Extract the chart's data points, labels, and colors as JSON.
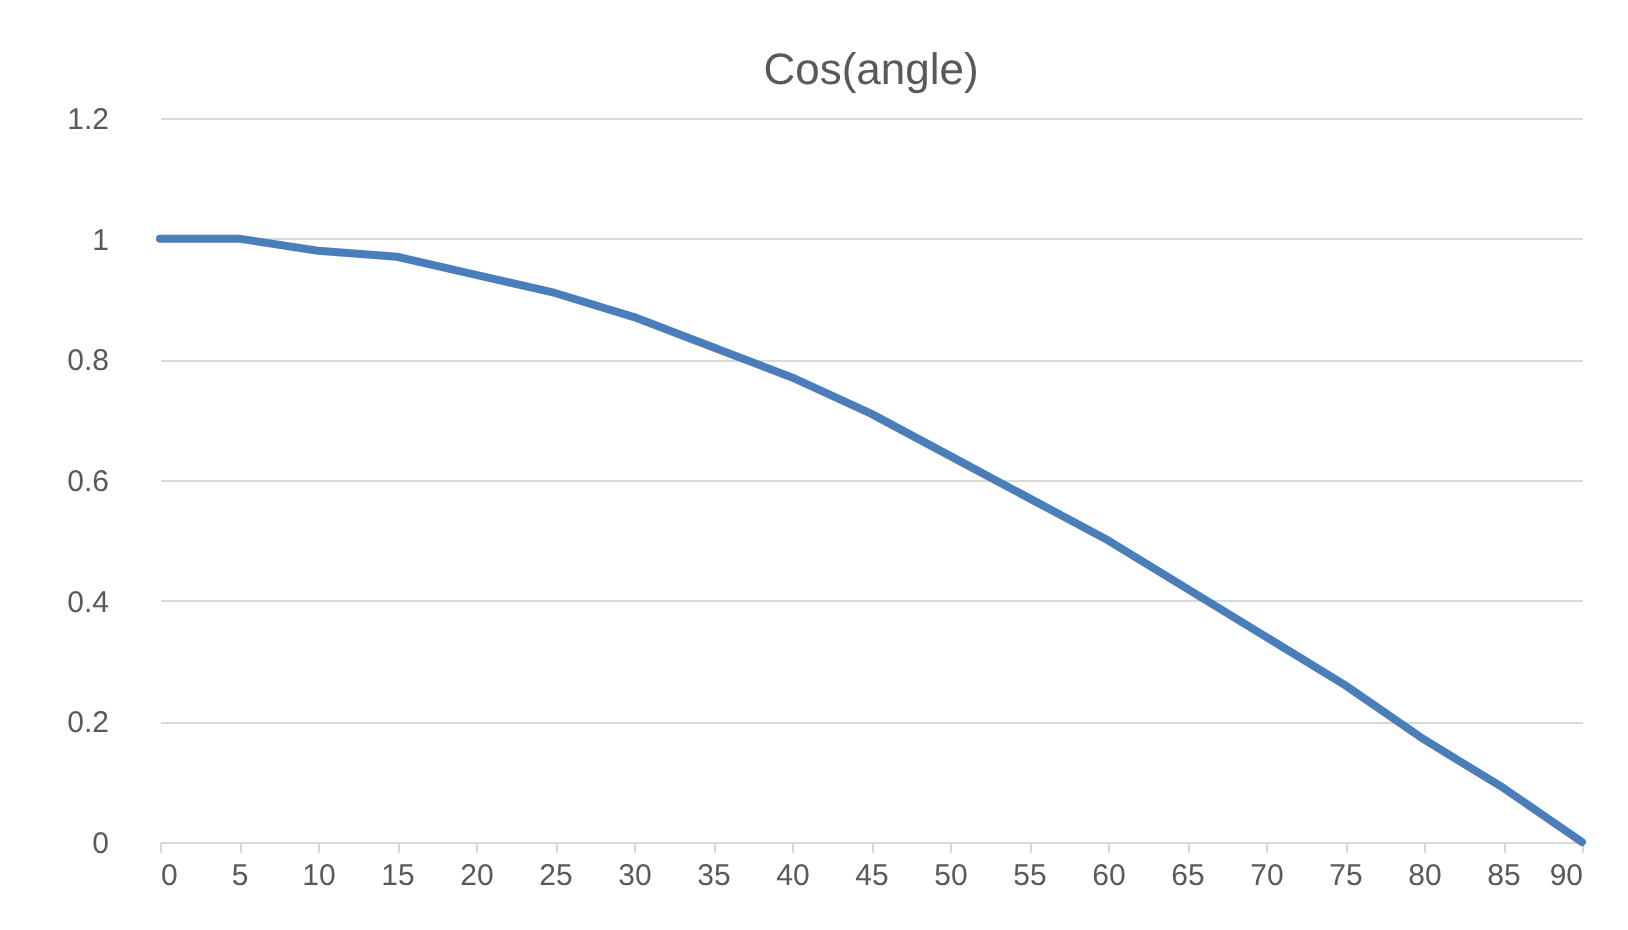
{
  "chart_data": {
    "type": "line",
    "title": "Cos(angle)",
    "x": [
      0,
      5,
      10,
      15,
      20,
      25,
      30,
      35,
      40,
      45,
      50,
      55,
      60,
      65,
      70,
      75,
      80,
      85,
      90
    ],
    "series": [
      {
        "color": "#4a7ebb",
        "values": [
          1,
          1.0,
          0.98,
          0.97,
          0.94,
          0.91,
          0.87,
          0.82,
          0.77,
          0.71,
          0.64,
          0.57,
          0.5,
          0.42,
          0.34,
          0.26,
          0.17,
          0.09,
          0
        ]
      }
    ],
    "xlim": [
      0,
      90
    ],
    "xticks": [
      0,
      5,
      10,
      15,
      20,
      25,
      30,
      35,
      40,
      45,
      50,
      55,
      60,
      65,
      70,
      75,
      80,
      85,
      90
    ],
    "ylim": [
      0,
      1.2
    ],
    "yticks": [
      0,
      0.2,
      0.4,
      0.6,
      0.8,
      1,
      1.2
    ],
    "grid": "y"
  }
}
